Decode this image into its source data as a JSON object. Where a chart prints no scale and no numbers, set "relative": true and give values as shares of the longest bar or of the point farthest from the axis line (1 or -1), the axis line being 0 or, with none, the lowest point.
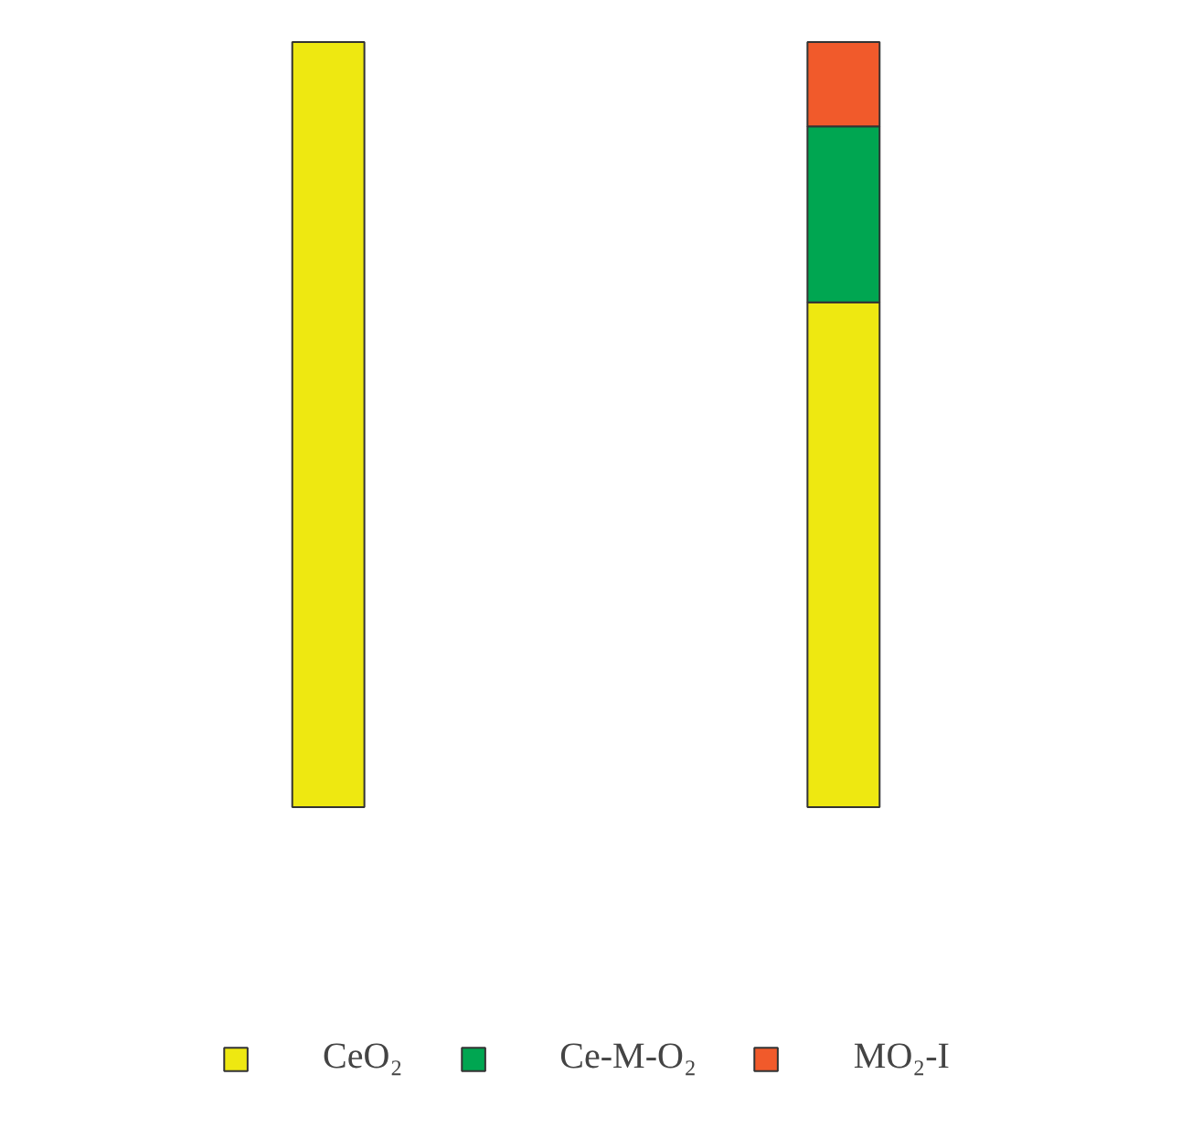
{
  "chart_data": {
    "type": "bar",
    "stacked": true,
    "relative": true,
    "categories": [
      null,
      null
    ],
    "series": [
      {
        "name": "CeO₂",
        "color": "#eee811",
        "values": [
          1,
          0.66
        ]
      },
      {
        "name": "Ce-M-O₂",
        "color": "#00a651",
        "values": [
          null,
          0.23
        ]
      },
      {
        "name": "MO₂-I",
        "color": "#f15a2b",
        "values": [
          null,
          0.11
        ]
      }
    ],
    "legend": "bottom",
    "grid": false
  }
}
